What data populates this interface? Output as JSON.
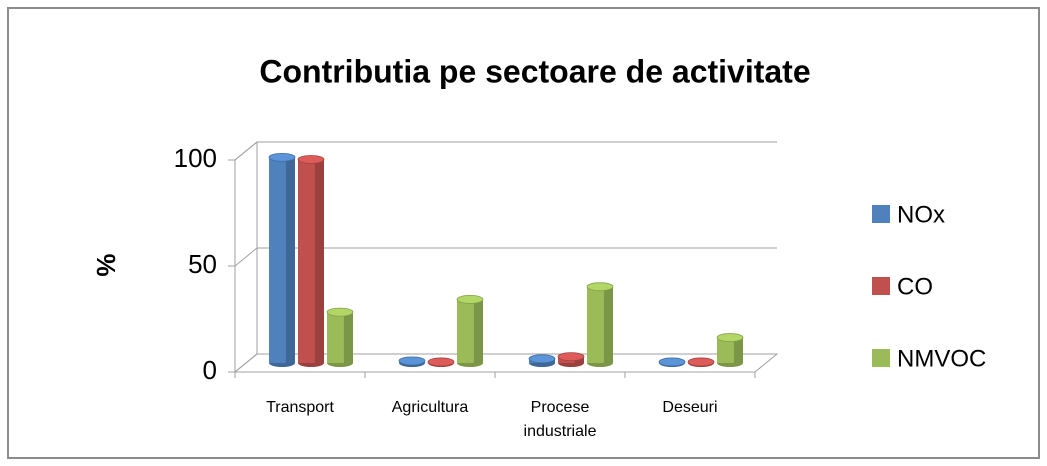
{
  "chart_data": {
    "type": "bar3d",
    "title": "Contributia pe sectoare de activitate",
    "y_label": "%",
    "categories": [
      "Transport",
      "Agricultura",
      "Procese industriale",
      "Deseuri"
    ],
    "series": [
      {
        "name": "NOx",
        "color": "#4f81bd",
        "values": [
          97,
          1,
          2,
          0.5
        ]
      },
      {
        "name": "CO",
        "color": "#c0504d",
        "values": [
          96,
          0.5,
          3,
          0.5
        ]
      },
      {
        "name": "NMVOC",
        "color": "#9bbb59",
        "values": [
          24,
          30,
          36,
          12
        ]
      }
    ],
    "ylim": [
      0,
      100
    ],
    "yticks": [
      0,
      50,
      100
    ],
    "grid": true,
    "legend": "right"
  }
}
